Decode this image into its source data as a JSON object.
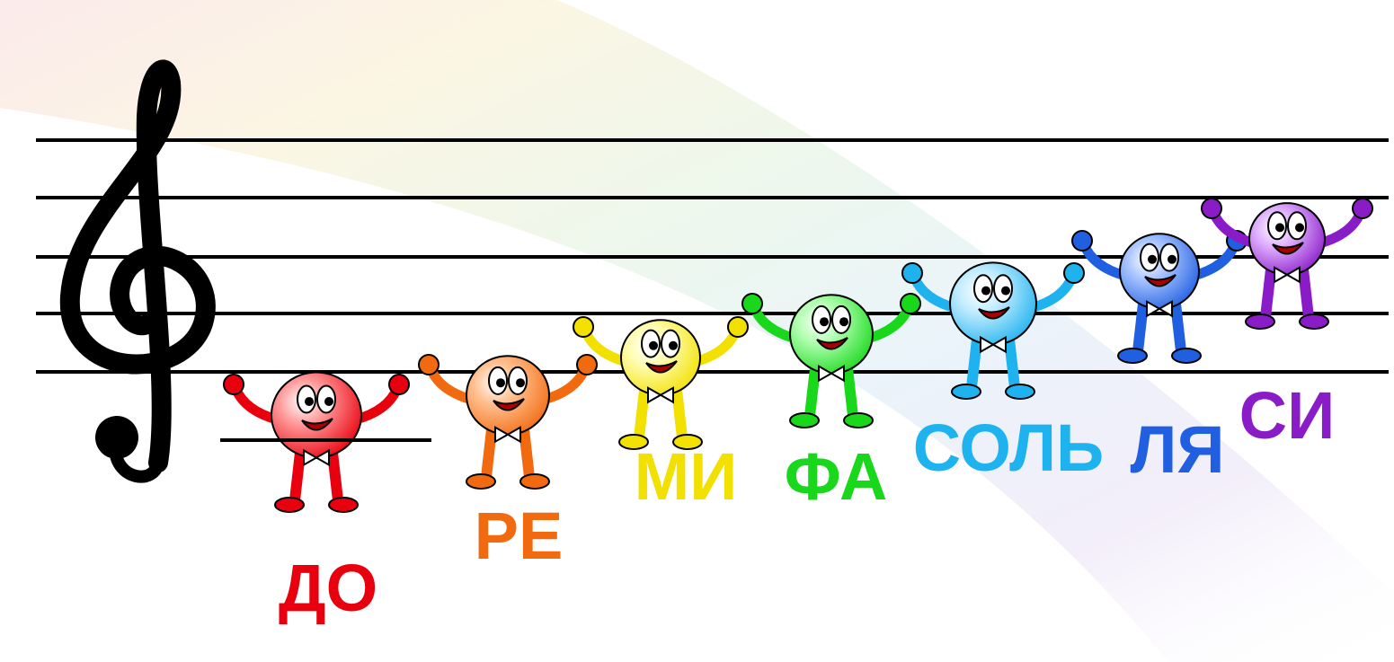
{
  "notes": [
    {
      "label": "ДО"
    },
    {
      "label": "РЕ"
    },
    {
      "label": "МИ"
    },
    {
      "label": "ФА"
    },
    {
      "label": "СОЛЬ"
    },
    {
      "label": "ЛЯ"
    },
    {
      "label": "СИ"
    }
  ]
}
